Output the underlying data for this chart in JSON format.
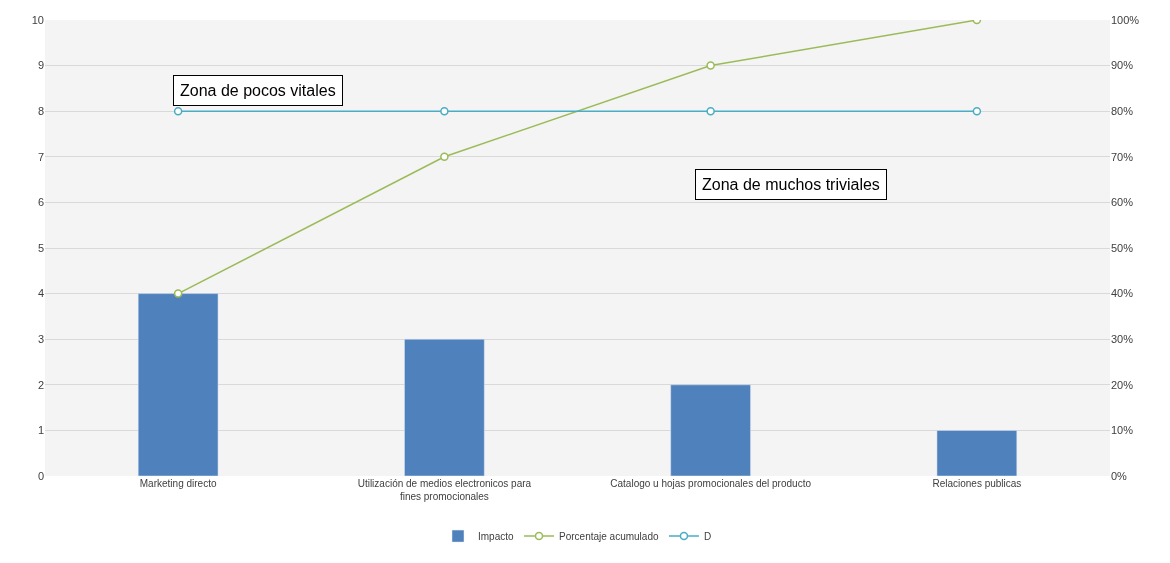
{
  "chart_data": {
    "type": "bar",
    "categories": [
      "Marketing directo",
      "Utilización de medios electronicos para fines promocionales",
      "Catalogo u hojas promocionales del producto",
      "Relaciones publicas"
    ],
    "series": [
      {
        "name": "Impacto",
        "color": "#4f81bd",
        "values": [
          4,
          3,
          2,
          1
        ]
      },
      {
        "name": "Porcentaje acumulado",
        "type": "line",
        "axis": "y2",
        "color": "#9bbb59",
        "values": [
          40,
          70,
          90,
          100
        ]
      },
      {
        "name": "D",
        "type": "line",
        "axis": "y2",
        "color": "#4bacc6",
        "values": [
          80,
          80,
          80,
          80
        ]
      }
    ],
    "ylim": [
      0,
      10
    ],
    "yticks": [
      0,
      1,
      2,
      3,
      4,
      5,
      6,
      7,
      8,
      9,
      10
    ],
    "y2lim": [
      0,
      100
    ],
    "y2ticks": [
      {
        "value": 0,
        "label": "0%"
      },
      {
        "value": 10,
        "label": "10%"
      },
      {
        "value": 20,
        "label": "20%"
      },
      {
        "value": 30,
        "label": "30%"
      },
      {
        "value": 40,
        "label": "40%"
      },
      {
        "value": 50,
        "label": "50%"
      },
      {
        "value": 60,
        "label": "60%"
      },
      {
        "value": 70,
        "label": "70%"
      },
      {
        "value": 80,
        "label": "80%"
      },
      {
        "value": 90,
        "label": "90%"
      },
      {
        "value": 100,
        "label": "100%"
      }
    ],
    "annotations": [
      "Zona de pocos vitales",
      "Zona de muchos triviales"
    ],
    "grid": "y",
    "legend": "bottom",
    "marker": "circle"
  }
}
